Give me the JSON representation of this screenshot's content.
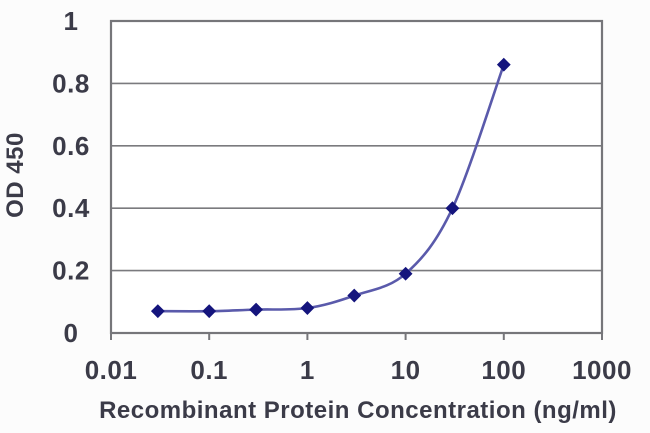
{
  "chart_data": {
    "type": "line",
    "title": "",
    "xlabel": "Recombinant Protein Concentration (ng/ml)",
    "ylabel": "OD 450",
    "x_scale": "log",
    "xlim": [
      0.01,
      1000
    ],
    "ylim": [
      0,
      1
    ],
    "x_tick_labels": [
      "0.01",
      "0.1",
      "1",
      "10",
      "100",
      "1000"
    ],
    "y_tick_labels": [
      "0",
      "0.2",
      "0.4",
      "0.6",
      "0.8",
      "1"
    ],
    "grid": "horizontal",
    "legend": "none",
    "series": [
      {
        "name": "OD 450",
        "marker": "diamond",
        "x": [
          0.03,
          0.1,
          0.3,
          1,
          3,
          10,
          30,
          100
        ],
        "y": [
          0.07,
          0.07,
          0.075,
          0.08,
          0.12,
          0.19,
          0.4,
          0.86
        ]
      }
    ],
    "colors": {
      "line": "#5a5aab",
      "marker": "#15157d",
      "grid": "#7a7a7e",
      "axis_frame": "#76767a",
      "text": "#3b3b48",
      "plot_bg": "#ffffff",
      "page_bg": "#fcfcfc"
    }
  }
}
